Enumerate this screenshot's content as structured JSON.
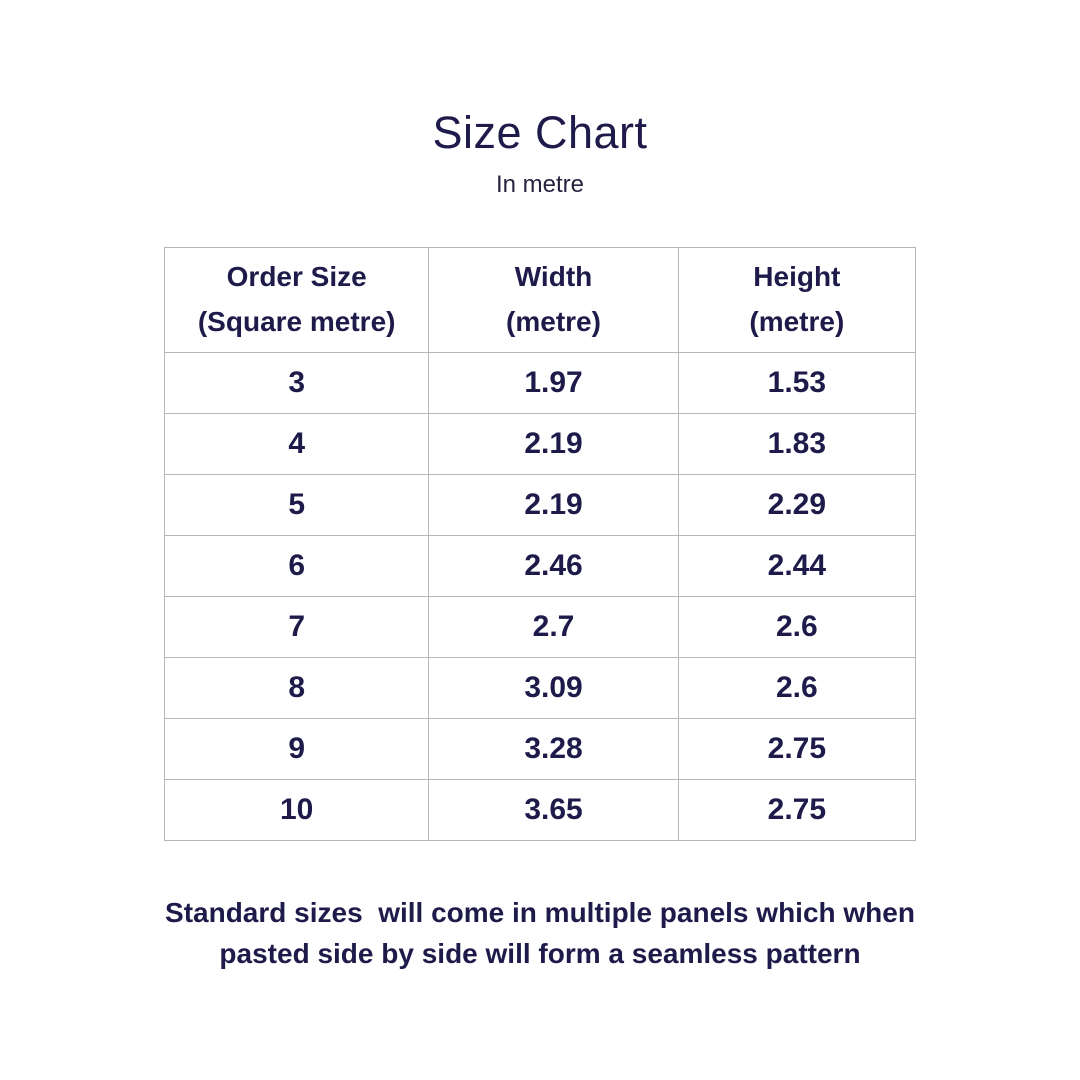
{
  "page": {
    "title": "Size Chart",
    "subtitle": "In metre",
    "background": "#ffffff"
  },
  "colors": {
    "text": "#1e1b4b",
    "border": "#b7b7b7"
  },
  "table": {
    "headers": [
      {
        "line1": "Order Size",
        "line2": "(Square metre)"
      },
      {
        "line1": "Width",
        "line2": "(metre)"
      },
      {
        "line1": "Height",
        "line2": "(metre)"
      }
    ],
    "rows": [
      [
        "3",
        "1.97",
        "1.53"
      ],
      [
        "4",
        "2.19",
        "1.83"
      ],
      [
        "5",
        "2.19",
        "2.29"
      ],
      [
        "6",
        "2.46",
        "2.44"
      ],
      [
        "7",
        "2.7",
        "2.6"
      ],
      [
        "8",
        "3.09",
        "2.6"
      ],
      [
        "9",
        "3.28",
        "2.75"
      ],
      [
        "10",
        "3.65",
        "2.75"
      ]
    ]
  },
  "footer": {
    "line1": "Standard sizes  will come in multiple panels which when",
    "line2": "pasted side by side will form a seamless pattern"
  },
  "chart_data": {
    "type": "table",
    "title": "Size Chart",
    "subtitle": "In metre",
    "columns": [
      "Order Size (Square metre)",
      "Width (metre)",
      "Height (metre)"
    ],
    "rows": [
      [
        3,
        1.97,
        1.53
      ],
      [
        4,
        2.19,
        1.83
      ],
      [
        5,
        2.19,
        2.29
      ],
      [
        6,
        2.46,
        2.44
      ],
      [
        7,
        2.7,
        2.6
      ],
      [
        8,
        3.09,
        2.6
      ],
      [
        9,
        3.28,
        2.75
      ],
      [
        10,
        3.65,
        2.75
      ]
    ],
    "note": "Standard sizes  will come in multiple panels which when pasted side by side will form a seamless pattern"
  }
}
